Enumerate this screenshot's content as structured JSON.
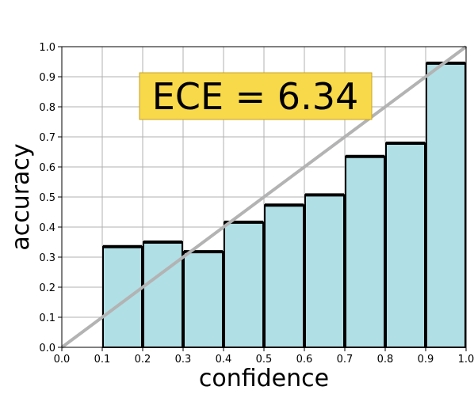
{
  "chart_data": {
    "type": "bar",
    "xlabel": "confidence",
    "ylabel": "accuracy",
    "xlim": [
      0.0,
      1.0
    ],
    "ylim": [
      0.0,
      1.0
    ],
    "grid": true,
    "xticks": [
      "0.0",
      "0.1",
      "0.2",
      "0.3",
      "0.4",
      "0.5",
      "0.6",
      "0.7",
      "0.8",
      "0.9",
      "1.0"
    ],
    "yticks": [
      "0.0",
      "0.1",
      "0.2",
      "0.3",
      "0.4",
      "0.5",
      "0.6",
      "0.7",
      "0.8",
      "0.9",
      "1.0"
    ],
    "bins": [
      {
        "start": 0.0,
        "end": 0.1,
        "accuracy": 0.0
      },
      {
        "start": 0.1,
        "end": 0.2,
        "accuracy": 0.335
      },
      {
        "start": 0.2,
        "end": 0.3,
        "accuracy": 0.35
      },
      {
        "start": 0.3,
        "end": 0.4,
        "accuracy": 0.318
      },
      {
        "start": 0.4,
        "end": 0.5,
        "accuracy": 0.416
      },
      {
        "start": 0.5,
        "end": 0.6,
        "accuracy": 0.473
      },
      {
        "start": 0.6,
        "end": 0.7,
        "accuracy": 0.507
      },
      {
        "start": 0.7,
        "end": 0.8,
        "accuracy": 0.635
      },
      {
        "start": 0.8,
        "end": 0.9,
        "accuracy": 0.679
      },
      {
        "start": 0.9,
        "end": 1.0,
        "accuracy": 0.945
      }
    ],
    "reference_line": {
      "x": [
        0.0,
        1.0
      ],
      "y": [
        0.0,
        1.0
      ]
    },
    "annotation": {
      "text": "ECE = 6.34"
    },
    "colors": {
      "bar_fill": "#b0dfe5",
      "bar_edge": "#000000",
      "diagonal": "#b3b3b3",
      "grid": "#b0b0b0",
      "annotation_box": "#f8d94a",
      "annotation_edge": "#c9a227"
    }
  }
}
